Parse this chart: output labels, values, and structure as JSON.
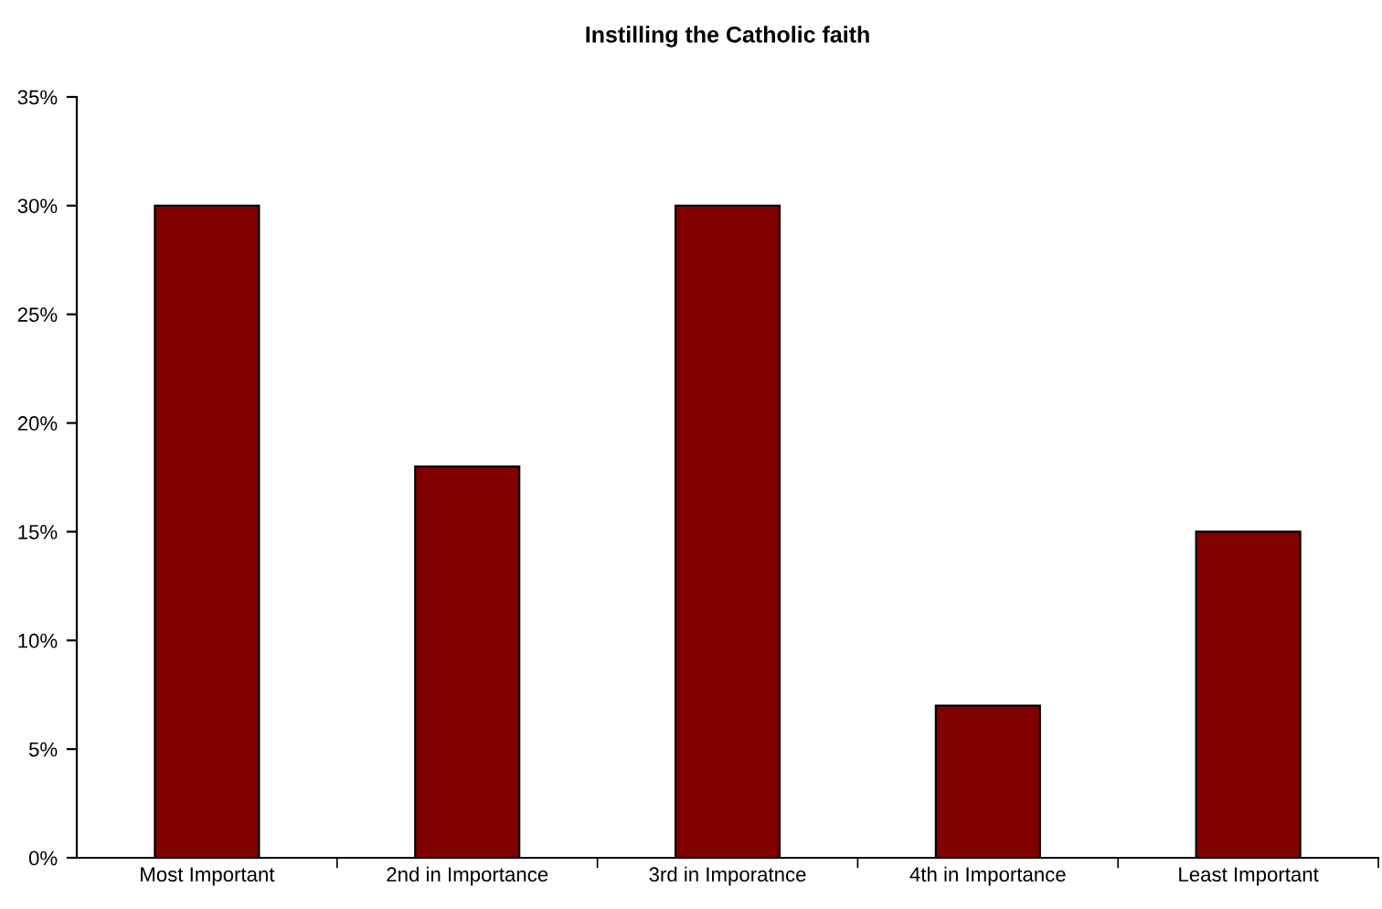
{
  "chart_data": {
    "type": "bar",
    "title": "Instilling the Catholic faith",
    "categories": [
      "Most Important",
      "2nd in Importance",
      "3rd in Imporatnce",
      "4th in Importance",
      "Least Important"
    ],
    "values": [
      30,
      18,
      30,
      7,
      15
    ],
    "color": "#800000",
    "ylim": [
      0,
      35
    ],
    "yticks": [
      {
        "value": 0,
        "label": "0%"
      },
      {
        "value": 5,
        "label": "5%"
      },
      {
        "value": 10,
        "label": "10%"
      },
      {
        "value": 15,
        "label": "15%"
      },
      {
        "value": 20,
        "label": "20%"
      },
      {
        "value": 25,
        "label": "25%"
      },
      {
        "value": 30,
        "label": "30%"
      },
      {
        "value": 35,
        "label": "35%"
      }
    ],
    "grid": false
  }
}
